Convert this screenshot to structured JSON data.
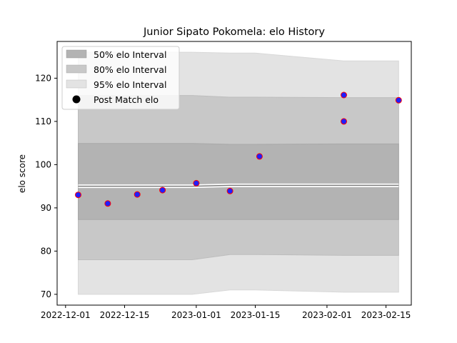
{
  "chart_data": {
    "type": "line",
    "title": "Junior Sipato Pokomela: elo History",
    "xlabel": "",
    "ylabel": "elo score",
    "xlim": [
      "2022-11-29",
      "2023-02-21"
    ],
    "ylim": [
      67.5,
      128.5
    ],
    "x_ticks": [
      "2022-12-01",
      "2022-12-15",
      "2023-01-01",
      "2023-01-15",
      "2023-02-01",
      "2023-02-15"
    ],
    "y_ticks": [
      70,
      80,
      90,
      100,
      110,
      120
    ],
    "grid": false,
    "legend_position": "top-left",
    "legend": {
      "i50": "50% elo Interval",
      "i80": "80% elo Interval",
      "i95": "95% elo Interval",
      "post": "Post Match elo"
    },
    "bands": {
      "x": [
        "2022-12-04",
        "2022-12-31",
        "2023-01-09",
        "2023-01-15",
        "2023-02-05",
        "2023-02-18"
      ],
      "i95_low": [
        70.0,
        70.0,
        71.0,
        71.0,
        70.5,
        70.5
      ],
      "i95_high": [
        126.0,
        126.0,
        125.8,
        125.8,
        124.0,
        124.0
      ],
      "i80_low": [
        78.0,
        78.0,
        79.2,
        79.2,
        79.0,
        79.0
      ],
      "i80_high": [
        116.0,
        116.0,
        115.6,
        115.6,
        115.5,
        115.5
      ],
      "i50_low": [
        87.3,
        87.3,
        87.3,
        87.3,
        87.3,
        87.3
      ],
      "i50_high": [
        104.9,
        104.9,
        104.7,
        104.7,
        104.8,
        104.8
      ],
      "mean": [
        95.0,
        95.0,
        95.2,
        95.2,
        95.2,
        95.2
      ]
    },
    "points": {
      "x": [
        "2022-12-04",
        "2022-12-11",
        "2022-12-18",
        "2022-12-24",
        "2023-01-01",
        "2023-01-09",
        "2023-01-16",
        "2023-02-05",
        "2023-02-05",
        "2023-02-18"
      ],
      "y": [
        93.0,
        91.0,
        93.1,
        94.1,
        95.7,
        93.9,
        101.9,
        116.1,
        110.0,
        114.9
      ]
    },
    "colors": {
      "i50": "#b3b3b3",
      "i80": "#c8c8c8",
      "i95": "#e3e3e3",
      "line": "#7f7f7f",
      "marker_face": "#1f1fff",
      "marker_edge": "#ff0000"
    }
  }
}
